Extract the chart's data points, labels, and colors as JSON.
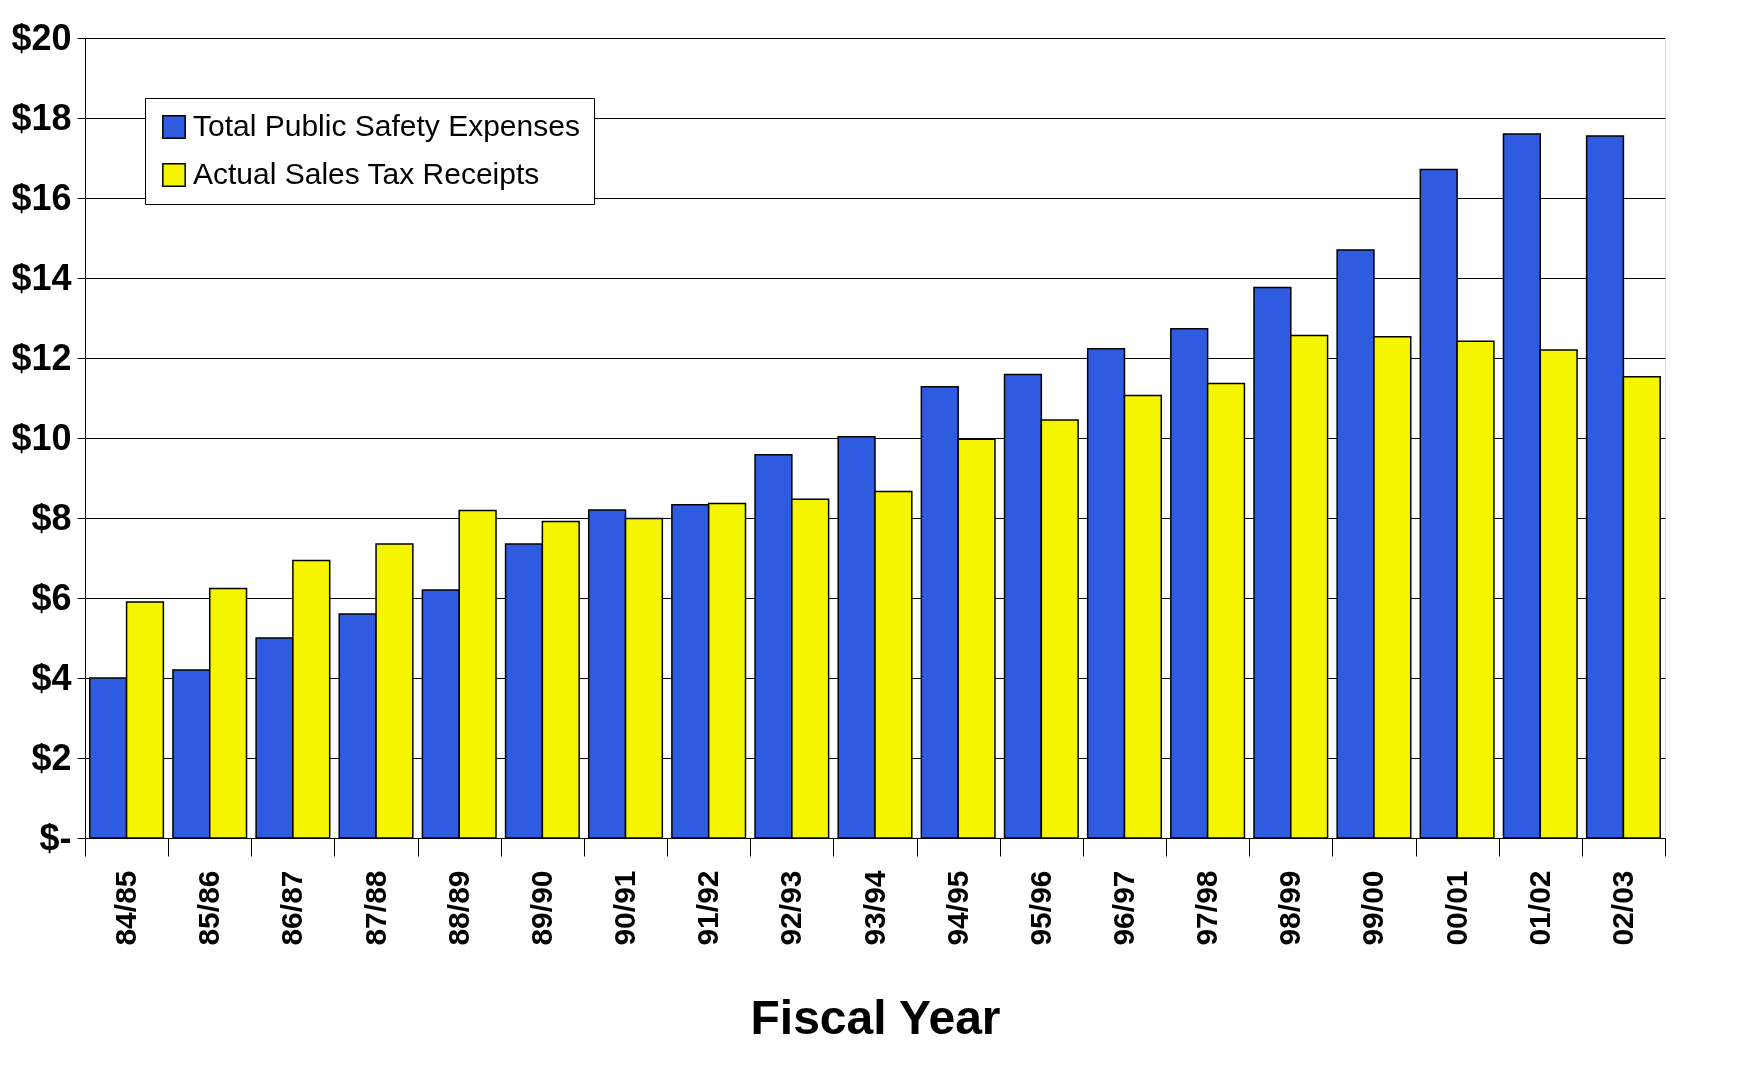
{
  "chart_data": {
    "type": "bar",
    "xlabel": "Fiscal Year",
    "categories": [
      "84/85",
      "85/86",
      "86/87",
      "87/88",
      "88/89",
      "89/90",
      "90/91",
      "91/92",
      "92/93",
      "93/94",
      "94/95",
      "95/96",
      "96/97",
      "97/98",
      "98/99",
      "99/00",
      "00/01",
      "01/02",
      "02/03"
    ],
    "series": [
      {
        "name": "Total Public Safety Expenses",
        "color": "#2f5be0",
        "values": [
          4.0,
          4.2,
          5.0,
          5.6,
          6.2,
          7.35,
          8.2,
          8.33,
          9.58,
          10.03,
          11.28,
          11.59,
          12.23,
          12.73,
          13.76,
          14.7,
          16.71,
          17.6,
          17.55
        ]
      },
      {
        "name": "Actual Sales Tax Receipts",
        "color": "#f5f500",
        "values": [
          5.9,
          6.24,
          6.94,
          7.35,
          8.19,
          7.91,
          7.99,
          8.36,
          8.47,
          8.66,
          9.97,
          10.45,
          11.06,
          11.36,
          12.56,
          12.53,
          12.42,
          12.2,
          11.53
        ]
      }
    ],
    "ylim": [
      0,
      20
    ],
    "yticks": [
      {
        "value": 0,
        "label": "$-"
      },
      {
        "value": 2,
        "label": "$2"
      },
      {
        "value": 4,
        "label": "$4"
      },
      {
        "value": 6,
        "label": "$6"
      },
      {
        "value": 8,
        "label": "$8"
      },
      {
        "value": 10,
        "label": "$10"
      },
      {
        "value": 12,
        "label": "$12"
      },
      {
        "value": 14,
        "label": "$14"
      },
      {
        "value": 16,
        "label": "$16"
      },
      {
        "value": 18,
        "label": "$18"
      },
      {
        "value": 20,
        "label": "$20"
      }
    ],
    "grid": "y",
    "legend": "top left"
  }
}
